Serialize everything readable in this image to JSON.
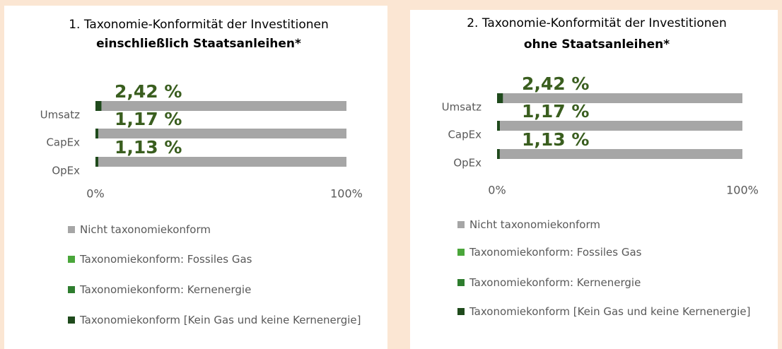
{
  "chart_data": [
    {
      "type": "bar",
      "orientation": "horizontal",
      "stacked": true,
      "title": "1. Taxonomie-Konformität der Investitionen",
      "subtitle": "einschließlich Staatsanleihen*",
      "categories": [
        "Umsatz",
        "CapEx",
        "OpEx"
      ],
      "series": [
        {
          "name": "Nicht taxonomiekonform",
          "color": "#a6a6a6",
          "values": [
            97.58,
            98.83,
            98.87
          ]
        },
        {
          "name": "Taxonomiekonform: Fossiles Gas",
          "color": "#4aa63a",
          "values": [
            0,
            0,
            0
          ]
        },
        {
          "name": "Taxonomiekonform: Kernenergie",
          "color": "#2e7d2e",
          "values": [
            0,
            0,
            0
          ]
        },
        {
          "name": "Taxonomiekonform [Kein Gas und keine Kern­energie]",
          "color": "#1f4a1c",
          "values": [
            2.42,
            1.17,
            1.13
          ],
          "value_labels": [
            "2,42 %",
            "1,17 %",
            "1,13 %"
          ]
        }
      ],
      "xlim": [
        0,
        100
      ],
      "xticks": [
        {
          "value": 0,
          "label": "0%"
        },
        {
          "value": 100,
          "label": "100%"
        }
      ],
      "legend": "bottom"
    },
    {
      "type": "bar",
      "orientation": "horizontal",
      "stacked": true,
      "title": "2. Taxonomie-Konformität der Investitionen",
      "subtitle": "ohne Staatsanleihen*",
      "categories": [
        "Umsatz",
        "CapEx",
        "OpEx"
      ],
      "series": [
        {
          "name": "Nicht taxonomiekonform",
          "color": "#a6a6a6",
          "values": [
            97.58,
            98.83,
            98.87
          ]
        },
        {
          "name": "Taxonomiekonform: Fossiles Gas",
          "color": "#4aa63a",
          "values": [
            0,
            0,
            0
          ]
        },
        {
          "name": "Taxonomiekonform: Kernenergie",
          "color": "#2e7d2e",
          "values": [
            0,
            0,
            0
          ]
        },
        {
          "name": "Taxonomiekonform [Kein Gas und keine Kern­energie]",
          "color": "#1f4a1c",
          "values": [
            2.42,
            1.17,
            1.13
          ],
          "value_labels": [
            "2,42 %",
            "1,17 %",
            "1,13 %"
          ]
        }
      ],
      "xlim": [
        0,
        100
      ],
      "xticks": [
        {
          "value": 0,
          "label": "0%"
        },
        {
          "value": 100,
          "label": "100%"
        }
      ],
      "legend": "bottom"
    }
  ]
}
